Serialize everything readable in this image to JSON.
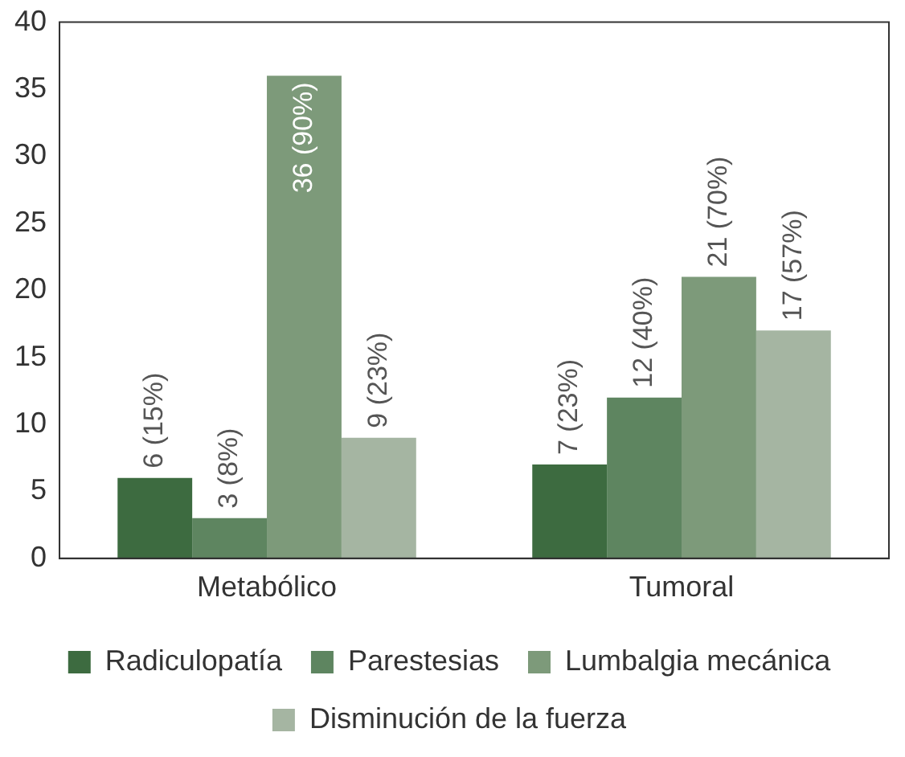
{
  "chart_data": {
    "type": "bar",
    "categories": [
      "Metabólico",
      "Tumoral"
    ],
    "series": [
      {
        "name": "Radiculopatía",
        "color": "#3d6b40",
        "values": [
          6,
          7
        ],
        "value_labels": [
          "6 (15%)",
          "7 (23%)"
        ]
      },
      {
        "name": "Parestesias",
        "color": "#5e8560",
        "values": [
          3,
          12
        ],
        "value_labels": [
          "3 (8%)",
          "12 (40%)"
        ]
      },
      {
        "name": "Lumbalgia mecánica",
        "color": "#7d9a7a",
        "values": [
          36,
          21
        ],
        "value_labels": [
          "36 (90%)",
          "21 (70%)"
        ]
      },
      {
        "name": "Disminución de la fuerza",
        "color": "#a5b5a2",
        "values": [
          9,
          17
        ],
        "value_labels": [
          "9 (23%)",
          "17 (57%)"
        ]
      }
    ],
    "ylim": [
      0,
      40
    ],
    "yticks": [
      0,
      5,
      10,
      15,
      20,
      25,
      30,
      35,
      40
    ],
    "grid": false,
    "legend": "bottom"
  }
}
